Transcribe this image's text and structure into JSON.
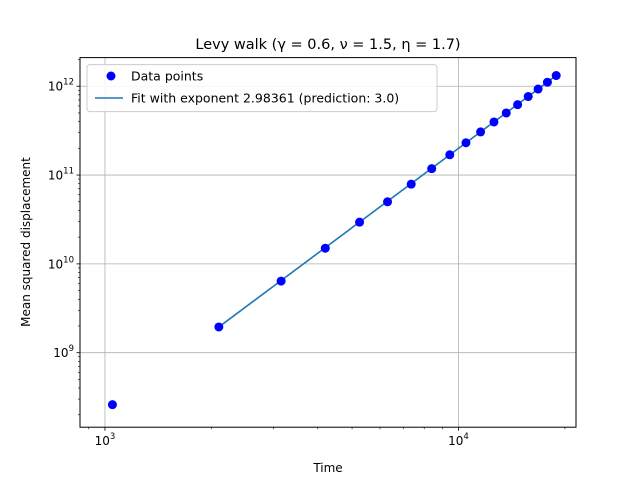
{
  "chart_data": {
    "type": "scatter",
    "title": "Levy walk (γ = 0.6, ν =  1.5, η =  1.7)",
    "xlabel": "Time",
    "ylabel": "Mean squared displacement",
    "xscale": "log",
    "yscale": "log",
    "xlim": [
      850,
      21500
    ],
    "ylim": [
      145000000.0,
      2100000000000.0
    ],
    "grid": true,
    "legend_position": "upper-left",
    "x_ticks": [
      {
        "value": 1000,
        "base": "10",
        "exp": "3"
      },
      {
        "value": 10000,
        "base": "10",
        "exp": "4"
      }
    ],
    "y_ticks": [
      {
        "value": 1000000000.0,
        "base": "10",
        "exp": "9"
      },
      {
        "value": 10000000000.0,
        "base": "10",
        "exp": "10"
      },
      {
        "value": 100000000000.0,
        "base": "10",
        "exp": "11"
      },
      {
        "value": 1000000000000.0,
        "base": "10",
        "exp": "12"
      }
    ],
    "series": [
      {
        "name": "Data points",
        "kind": "scatter",
        "color": "#0000ff",
        "x": [
          1050,
          2100,
          3150,
          4200,
          5250,
          6300,
          7350,
          8400,
          9450,
          10500,
          11550,
          12600,
          13650,
          14700,
          15750,
          16800,
          17850,
          18900
        ],
        "y": [
          260000000.0,
          1950000000.0,
          6400000000.0,
          15000000000.0,
          29500000000.0,
          50000000000.0,
          79000000000.0,
          118000000000.0,
          169000000000.0,
          231000000000.0,
          306000000000.0,
          396000000000.0,
          500000000000.0,
          620000000000.0,
          765000000000.0,
          930000000000.0,
          1110000000000.0,
          1320000000000.0
        ]
      },
      {
        "name": "Fit with exponent 2.98361 (prediction: 3.0)",
        "kind": "line",
        "color": "#1f77b4",
        "x": [
          2100,
          18900
        ],
        "y": [
          1950000000.0,
          1320000000000.0
        ]
      }
    ]
  }
}
